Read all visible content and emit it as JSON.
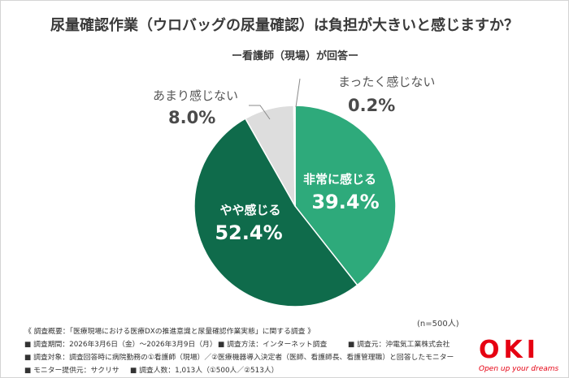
{
  "chart_data": {
    "type": "pie",
    "title": "尿量確認作業（ウロバッグの尿量確認）は負担が大きいと感じますか？",
    "subtitle": "ー看護師（現場）が回答ー",
    "categories": [
      "非常に感じる",
      "やや感じる",
      "あまり感じない",
      "まったく感じない"
    ],
    "values": [
      39.4,
      52.4,
      8.0,
      0.2
    ],
    "value_labels": [
      "39.4%",
      "52.4%",
      "8.0%",
      "0.2%"
    ],
    "colors": [
      "#2eaa7b",
      "#0f6b4b",
      "#dddddd",
      "#a3a3a3"
    ],
    "note": "(n=500人)"
  },
  "survey": {
    "overview": "《 調査概要：「医療現場における医療DXの推進意識と尿量確認作業実態」に関する調査 》",
    "period": "■ 調査期間：2026年3月6日（金）～2026年3月9日（月）",
    "method": "■ 調査方法：インターネット調査",
    "source": "■ 調査元：沖電気工業株式会社",
    "target": "■ 調査対象：調査回答時に病院勤務の①看護師（現場）／②医療機器導入決定者（医師、看護師長、看護管理職）と回答したモニター",
    "provider": "■ モニター提供元：サクリサ",
    "respondents": "■ 調査人数：1,013人（①500人／②513人）"
  },
  "logo": {
    "name": "OKI",
    "tagline": "Open up your dreams"
  }
}
